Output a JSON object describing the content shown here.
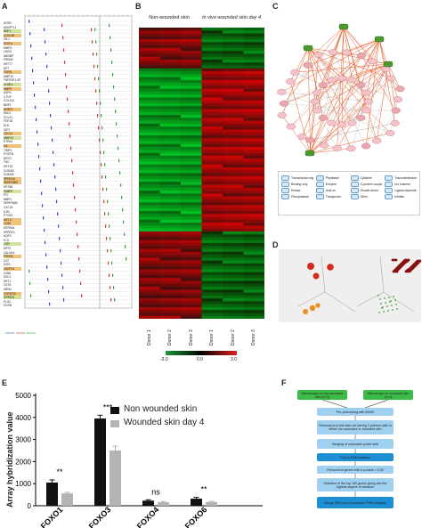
{
  "panels": {
    "a": "A",
    "b": "B",
    "c": "C",
    "d": "D",
    "e": "E",
    "f": "F"
  },
  "panel_a": {
    "genes": [
      "AGR2",
      "ANGPTL1",
      "BNF1",
      "CLEC3B",
      "OIL1",
      "EGFL6",
      "MMP3",
      "LRIG2",
      "ABI3BP",
      "FREM2",
      "KRT77",
      "DPT",
      "TGFBI",
      "MMP10",
      "TNFRSF1-SF",
      "CHI3L1",
      "MMP9",
      "ASPN",
      "CTGF",
      "COL1A1",
      "BMP1",
      "SFRP2",
      "DKK2",
      "CCL21",
      "FGF18",
      "ELN",
      "IGF2",
      "CXCL1",
      "MMP12",
      "HTRA1",
      "IL6",
      "TIMP1",
      "POSTN",
      "NRG1",
      "TNC",
      "KRT16",
      "S100A8",
      "S100A9",
      "SPRR1B",
      "SERPINB3",
      "KRT6B",
      "FABP5",
      "PI3",
      "MMP1",
      "SERPINB4",
      "CXCL8",
      "IL1B",
      "PTGS2",
      "KRT17",
      "LCN2",
      "DEFB4A",
      "SPRR2C",
      "AQP3",
      "FLG",
      "LOR",
      "KRT2",
      "CALML5",
      "FGFR3",
      "IL37",
      "SCEL",
      "CASP14",
      "GJB6",
      "DSC1",
      "KRT1",
      "CST6",
      "SBSN",
      "CYP4F22",
      "GPR115",
      "FLG2",
      "CDSN"
    ],
    "highlight_colors": [
      "#f0f0f0",
      "#f7f7f7",
      "#ffffff",
      "#d9ecb8",
      "#f4f4f4",
      "#cfe39f",
      "#f3d58a",
      "#ffffff",
      "#f2c97e",
      "#ffffff"
    ],
    "legend": [
      "FOXO1",
      "FOXO3",
      "FOXO4"
    ],
    "legend_colors": [
      "#2952c4",
      "#d93636",
      "#3aa53a"
    ]
  },
  "panel_b": {
    "group1": "Non-wounded skin",
    "group2": "In vivo wounded skin day 4",
    "columns": [
      "Donor 1",
      "Donor 2",
      "Donor 3",
      "Donor 1",
      "Donor 2",
      "Donor 3"
    ],
    "scale_min": "-3.0",
    "scale_mid": "0.0",
    "scale_max": "3.0"
  },
  "panel_c": {
    "legend": [
      "Transcription regulator",
      "Peptidase",
      "Cytokine",
      "Transmembrane receptor",
      "Binding only",
      "Enzyme",
      "G-protein coupled receptor",
      "Ion channel",
      "Kinase",
      "Acts on",
      "Growth factor",
      "Ligand-dependent nuclear receptor",
      "Phosphatase",
      "Transporter",
      "Other",
      "Inhibits"
    ]
  },
  "panel_d": {
    "axis_labels": [
      "PC1",
      "PC2",
      "PC3"
    ]
  },
  "chart_data": {
    "type": "bar",
    "categories": [
      "FOXO1",
      "FOXO3",
      "FOXO4",
      "FOXO6"
    ],
    "series": [
      {
        "name": "Non wounded skin",
        "values": [
          1050,
          3950,
          230,
          320
        ],
        "errors": [
          120,
          150,
          40,
          60
        ],
        "color": "#111111"
      },
      {
        "name": "Wounded skin day 4",
        "values": [
          560,
          2500,
          160,
          170
        ],
        "errors": [
          50,
          200,
          30,
          30
        ],
        "color": "#b4b4b4"
      }
    ],
    "significance": [
      "**",
      "***",
      "ns",
      "**"
    ],
    "ylabel": "Array hybridization value",
    "yticks": [
      0,
      1000,
      2000,
      3000,
      4000,
      5000
    ],
    "ylim": [
      0,
      5000
    ]
  },
  "panel_f": {
    "steps": [
      {
        "text": "Microarrays on non-wounded skin (n=3)",
        "color": "#3dbb48"
      },
      {
        "text": "Microarrays on wounded skin (n=3)",
        "color": "#3dbb48"
      },
      {
        "text": "Pre-processing with MAS5",
        "color": "#9fd0ef"
      },
      {
        "text": "Removal of probe sets not having 3 present calls in either non-wounded or wounded skin",
        "color": "#9fd0ef"
      },
      {
        "text": "Merging of redundant probe sets",
        "color": "#9fd0ef"
      },
      {
        "text": "Put on SAM analysis",
        "color": "#1e8fd2"
      },
      {
        "text": "Removal of genes with a q-value > 0.05",
        "color": "#9fd0ef"
      },
      {
        "text": "Selection of the top 100 genes going into the highest degree of variance",
        "color": "#9fd0ef"
      },
      {
        "text": "Merge (IPA) and Consensus TFBS analysis",
        "color": "#1e8fd2"
      }
    ]
  }
}
